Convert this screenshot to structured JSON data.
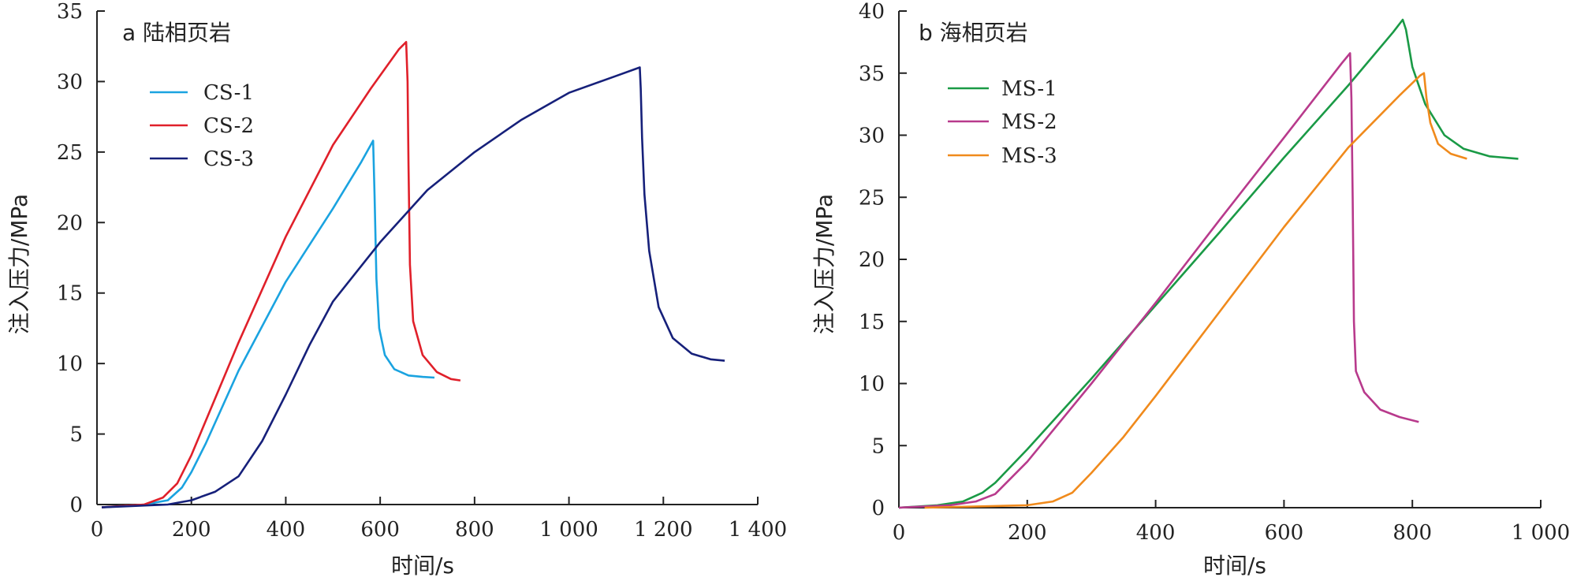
{
  "chart_data": [
    {
      "type": "line",
      "title": "a 陆相页岩",
      "xlabel": "时间/s",
      "ylabel": "注入压力/MPa",
      "xlim": [
        0,
        1400
      ],
      "ylim": [
        0,
        35
      ],
      "xticks": [
        0,
        200,
        400,
        600,
        800,
        1000,
        1200,
        1400
      ],
      "xtick_labels": [
        "0",
        "200",
        "400",
        "600",
        "800",
        "1 000",
        "1 200",
        "1 400"
      ],
      "yticks": [
        0,
        5,
        10,
        15,
        20,
        25,
        30,
        35
      ],
      "ytick_labels": [
        "0",
        "5",
        "10",
        "15",
        "20",
        "25",
        "30",
        "35"
      ],
      "legend_position": "upper-left",
      "grid": false,
      "series": [
        {
          "name": "CS-1",
          "color": "#1aa3e0",
          "points": [
            [
              10,
              -0.2
            ],
            [
              100,
              0
            ],
            [
              150,
              0.3
            ],
            [
              180,
              1.2
            ],
            [
              200,
              2.3
            ],
            [
              230,
              4.3
            ],
            [
              300,
              9.5
            ],
            [
              400,
              15.8
            ],
            [
              500,
              21.0
            ],
            [
              560,
              24.3
            ],
            [
              585,
              25.8
            ],
            [
              588,
              22
            ],
            [
              592,
              16
            ],
            [
              598,
              12.5
            ],
            [
              610,
              10.6
            ],
            [
              630,
              9.6
            ],
            [
              660,
              9.15
            ],
            [
              690,
              9.05
            ],
            [
              715,
              9.0
            ]
          ]
        },
        {
          "name": "CS-2",
          "color": "#e0202a",
          "points": [
            [
              10,
              -0.2
            ],
            [
              100,
              0
            ],
            [
              140,
              0.5
            ],
            [
              170,
              1.5
            ],
            [
              200,
              3.5
            ],
            [
              300,
              11.5
            ],
            [
              400,
              19.0
            ],
            [
              500,
              25.5
            ],
            [
              580,
              29.5
            ],
            [
              640,
              32.3
            ],
            [
              655,
              32.8
            ],
            [
              658,
              30
            ],
            [
              660,
              24
            ],
            [
              663,
              17
            ],
            [
              670,
              13
            ],
            [
              690,
              10.6
            ],
            [
              720,
              9.4
            ],
            [
              750,
              8.9
            ],
            [
              770,
              8.8
            ]
          ]
        },
        {
          "name": "CS-3",
          "color": "#16207a",
          "points": [
            [
              10,
              -0.2
            ],
            [
              150,
              0
            ],
            [
              200,
              0.3
            ],
            [
              250,
              0.9
            ],
            [
              300,
              2.0
            ],
            [
              350,
              4.5
            ],
            [
              400,
              7.8
            ],
            [
              450,
              11.3
            ],
            [
              500,
              14.4
            ],
            [
              600,
              18.6
            ],
            [
              700,
              22.3
            ],
            [
              800,
              25.0
            ],
            [
              900,
              27.3
            ],
            [
              1000,
              29.2
            ],
            [
              1100,
              30.4
            ],
            [
              1150,
              31.0
            ],
            [
              1152,
              29.5
            ],
            [
              1155,
              26
            ],
            [
              1160,
              22
            ],
            [
              1170,
              18
            ],
            [
              1190,
              14
            ],
            [
              1220,
              11.8
            ],
            [
              1260,
              10.7
            ],
            [
              1300,
              10.3
            ],
            [
              1330,
              10.2
            ]
          ]
        }
      ]
    },
    {
      "type": "line",
      "title": "b 海相页岩",
      "xlabel": "时间/s",
      "ylabel": "注入压力/MPa",
      "xlim": [
        0,
        1000
      ],
      "ylim": [
        0,
        40
      ],
      "xticks": [
        0,
        200,
        400,
        600,
        800,
        1000
      ],
      "xtick_labels": [
        "0",
        "200",
        "400",
        "600",
        "800",
        "1 000"
      ],
      "yticks": [
        0,
        5,
        10,
        15,
        20,
        25,
        30,
        35,
        40
      ],
      "ytick_labels": [
        "0",
        "5",
        "10",
        "15",
        "20",
        "25",
        "30",
        "35",
        "40"
      ],
      "legend_position": "upper-left",
      "grid": false,
      "series": [
        {
          "name": "MS-1",
          "color": "#1a9a46",
          "points": [
            [
              0,
              0
            ],
            [
              60,
              0.2
            ],
            [
              100,
              0.5
            ],
            [
              130,
              1.2
            ],
            [
              150,
              2.0
            ],
            [
              200,
              4.7
            ],
            [
              300,
              10.4
            ],
            [
              400,
              16.3
            ],
            [
              500,
              22.2
            ],
            [
              600,
              28.2
            ],
            [
              700,
              34.0
            ],
            [
              770,
              38.3
            ],
            [
              785,
              39.3
            ],
            [
              790,
              38.5
            ],
            [
              800,
              35.5
            ],
            [
              820,
              32.5
            ],
            [
              850,
              30.0
            ],
            [
              880,
              28.9
            ],
            [
              920,
              28.3
            ],
            [
              965,
              28.1
            ]
          ]
        },
        {
          "name": "MS-2",
          "color": "#b83a8c",
          "points": [
            [
              0,
              0
            ],
            [
              80,
              0.2
            ],
            [
              120,
              0.5
            ],
            [
              150,
              1.1
            ],
            [
              200,
              3.7
            ],
            [
              300,
              10.0
            ],
            [
              400,
              16.5
            ],
            [
              500,
              23.2
            ],
            [
              600,
              29.8
            ],
            [
              690,
              35.8
            ],
            [
              703,
              36.6
            ],
            [
              705,
              33
            ],
            [
              707,
              25
            ],
            [
              709,
              15
            ],
            [
              712,
              11
            ],
            [
              725,
              9.3
            ],
            [
              750,
              7.9
            ],
            [
              780,
              7.3
            ],
            [
              810,
              6.9
            ]
          ]
        },
        {
          "name": "MS-3",
          "color": "#f08a1c",
          "points": [
            [
              40,
              0
            ],
            [
              200,
              0.2
            ],
            [
              240,
              0.5
            ],
            [
              270,
              1.2
            ],
            [
              300,
              2.8
            ],
            [
              350,
              5.7
            ],
            [
              400,
              9.0
            ],
            [
              500,
              15.8
            ],
            [
              600,
              22.6
            ],
            [
              700,
              29.0
            ],
            [
              780,
              33.2
            ],
            [
              812,
              34.8
            ],
            [
              818,
              35.0
            ],
            [
              822,
              33
            ],
            [
              828,
              31
            ],
            [
              840,
              29.3
            ],
            [
              860,
              28.5
            ],
            [
              885,
              28.1
            ]
          ]
        }
      ]
    }
  ]
}
